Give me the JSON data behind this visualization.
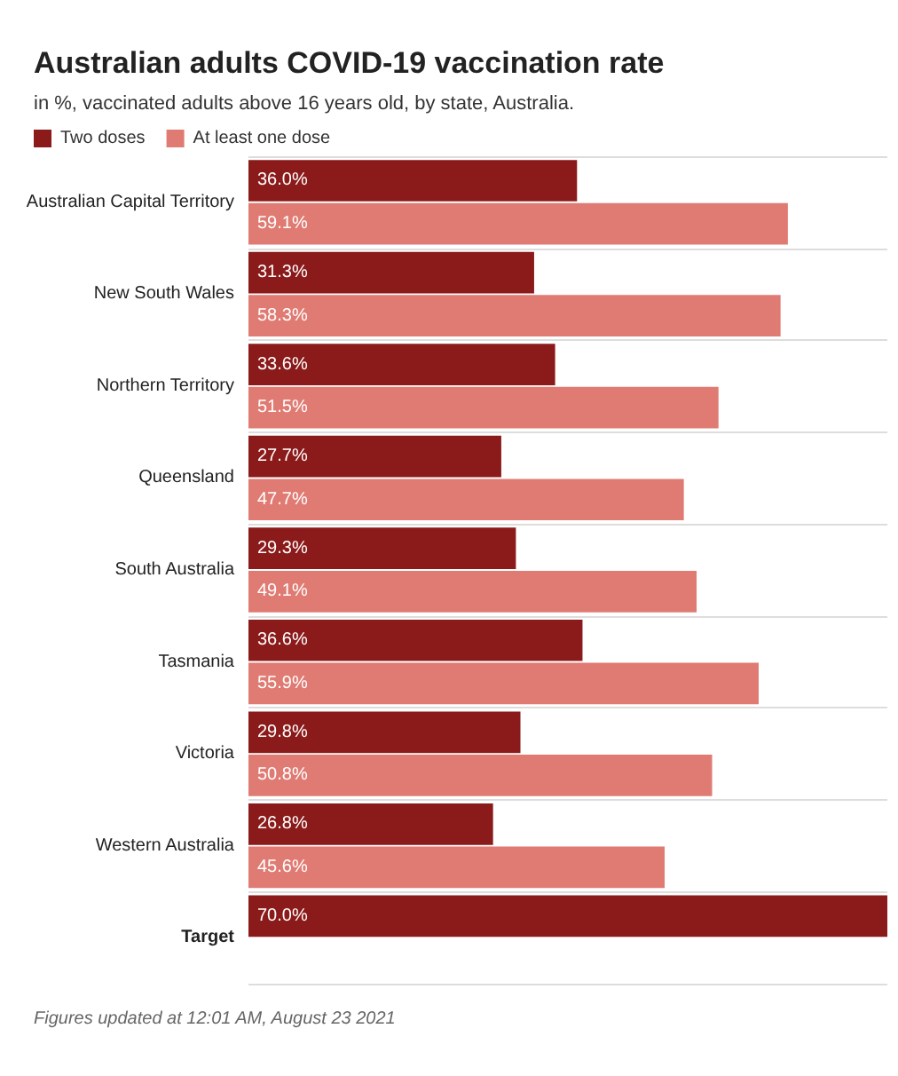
{
  "chart_data": {
    "type": "bar",
    "orientation": "horizontal",
    "title": "Australian adults COVID-19 vaccination rate",
    "subtitle": "in %, vaccinated adults above 16 years old, by state, Australia.",
    "categories": [
      "Australian Capital Territory",
      "New South Wales",
      "Northern Territory",
      "Queensland",
      "South Australia",
      "Tasmania",
      "Victoria",
      "Western Australia",
      "Target"
    ],
    "series": [
      {
        "name": "Two doses",
        "color": "#8b1a1a",
        "values": [
          36.0,
          31.3,
          33.6,
          27.7,
          29.3,
          36.6,
          29.8,
          26.8,
          70.0
        ],
        "value_labels": [
          "36.0%",
          "31.3%",
          "33.6%",
          "27.7%",
          "29.3%",
          "36.6%",
          "29.8%",
          "26.8%",
          "70.0%"
        ]
      },
      {
        "name": "At least one dose",
        "color": "#e07b73",
        "values": [
          59.1,
          58.3,
          51.5,
          47.7,
          49.1,
          55.9,
          50.8,
          45.6,
          null
        ],
        "value_labels": [
          "59.1%",
          "58.3%",
          "51.5%",
          "47.7%",
          "49.1%",
          "55.9%",
          "50.8%",
          "45.6%",
          null
        ]
      }
    ],
    "xlim": [
      0,
      70
    ],
    "grid": "y",
    "legend": "top left",
    "annotations": [
      "Figures updated at 12:01 AM, August 23 2021"
    ]
  }
}
